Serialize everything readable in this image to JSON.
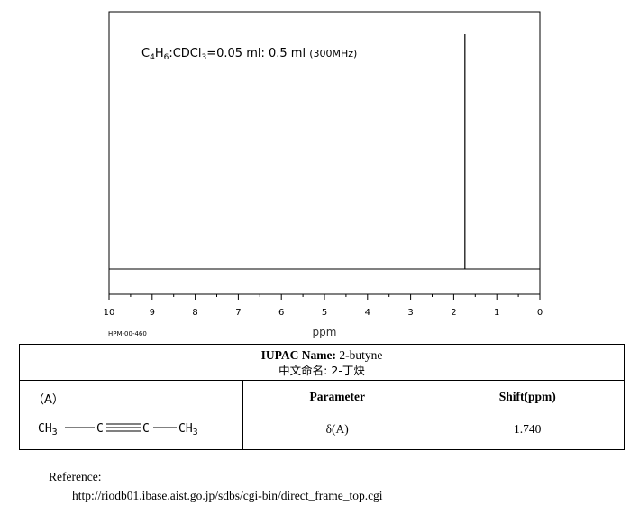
{
  "chart_data": {
    "type": "line",
    "title": "",
    "xlabel": "ppm",
    "ylabel": "",
    "xlim": [
      10,
      0
    ],
    "x_reversed": true,
    "xticks": [
      10,
      9,
      8,
      7,
      6,
      5,
      4,
      3,
      2,
      1,
      0
    ],
    "peaks": [
      {
        "shift": 1.74,
        "relative_intensity": 1.0
      }
    ],
    "annotation": {
      "c1": "C",
      "s1": "4",
      "c2": "H",
      "s2": "6",
      "c3": ":CDCl",
      "s3": "3",
      "c4": "=0.05 ml: 0.5 ml ",
      "c5": "(300MHz)"
    },
    "code": "HPM-00-460"
  },
  "info": {
    "iupac_label": "IUPAC Name:",
    "iupac_value": " 2-butyne",
    "chinese_label": "中文命名:",
    "chinese_value": " 2-丁炔",
    "struct_label": "（A）",
    "struct_formula": {
      "ch3_left": "CH",
      "sub_left": "3",
      "c1": "C",
      "c2": "C",
      "ch3_right": "CH",
      "sub_right": "3"
    },
    "columns": [
      "Parameter",
      "Shift(ppm)"
    ],
    "rows": [
      [
        "δ(A)",
        "1.740"
      ]
    ]
  },
  "reference": {
    "label": "Reference:",
    "url": "http://riodb01.ibase.aist.go.jp/sdbs/cgi-bin/direct_frame_top.cgi"
  }
}
